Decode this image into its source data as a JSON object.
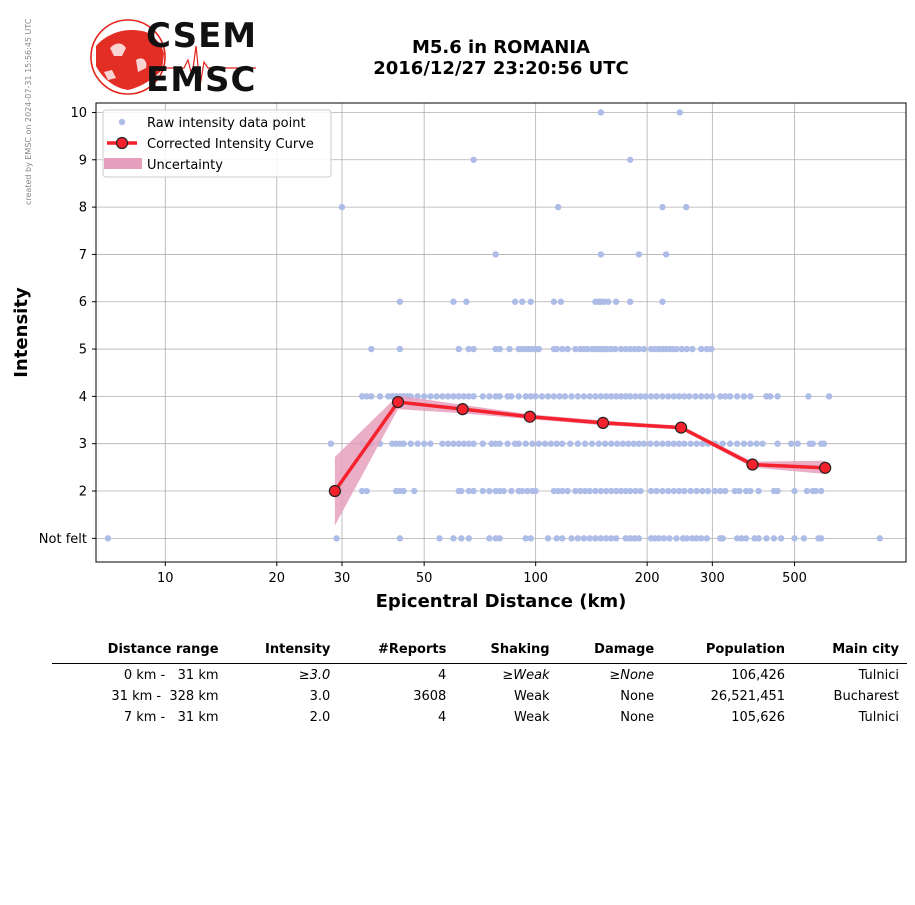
{
  "watermark": "created by EMSC on 2024-07-31 15:56:45 UTC",
  "logo": {
    "line1": "CSEM",
    "line2": "EMSC",
    "accent": "#e2231a"
  },
  "header": {
    "title_line1": "M5.6 in ROMANIA",
    "title_line2": "2016/12/27 23:20:56 UTC"
  },
  "chart_data": {
    "type": "scatter",
    "title": "M5.6 in ROMANIA 2016/12/27 23:20:56 UTC",
    "xlabel": "Epicentral Distance (km)",
    "ylabel": "Intensity",
    "xscale": "log",
    "xlim": [
      6.5,
      1000
    ],
    "ylim": [
      0.5,
      10.2
    ],
    "xticks": [
      10,
      20,
      30,
      50,
      100,
      200,
      300,
      500
    ],
    "yticks": [
      1,
      2,
      3,
      4,
      5,
      6,
      7,
      8,
      9,
      10
    ],
    "ytick_labels": [
      "Not felt",
      "2",
      "3",
      "4",
      "5",
      "6",
      "7",
      "8",
      "9",
      "10"
    ],
    "grid": true,
    "legend_position": "top-left",
    "legend": [
      "Raw intensity data point",
      "Corrected Intensity Curve",
      "Uncertainty"
    ],
    "colors": {
      "raw": "#aebde8",
      "curve": "#f5222d",
      "uncertainty": "#e6a0bd",
      "marker_edge": "#222222"
    },
    "raw_points": [
      {
        "y": 10,
        "x": [
          150,
          245
        ]
      },
      {
        "y": 9,
        "x": [
          68,
          180
        ]
      },
      {
        "y": 8,
        "x": [
          30,
          115,
          220,
          255
        ]
      },
      {
        "y": 7,
        "x": [
          78,
          150,
          190,
          225
        ]
      },
      {
        "y": 6,
        "x": [
          43,
          60,
          65,
          88,
          92,
          97,
          112,
          117,
          145,
          148,
          150,
          153,
          157,
          165,
          180,
          220
        ]
      },
      {
        "y": 5,
        "x": [
          36,
          43,
          62,
          66,
          68,
          78,
          80,
          85,
          90,
          92,
          94,
          96,
          98,
          100,
          102,
          112,
          114,
          118,
          122,
          128,
          132,
          135,
          138,
          142,
          145,
          148,
          150,
          153,
          156,
          160,
          164,
          170,
          175,
          180,
          185,
          190,
          196,
          205,
          210,
          215,
          220,
          225,
          230,
          235,
          240,
          248,
          256,
          265,
          280,
          290,
          298
        ]
      },
      {
        "y": 4,
        "x": [
          34,
          35,
          36,
          38,
          40,
          41,
          42,
          43,
          44,
          45,
          46,
          48,
          50,
          52,
          54,
          56,
          58,
          60,
          62,
          64,
          66,
          68,
          72,
          75,
          78,
          80,
          84,
          86,
          90,
          94,
          97,
          100,
          104,
          108,
          112,
          116,
          120,
          125,
          130,
          135,
          140,
          145,
          150,
          155,
          160,
          165,
          170,
          175,
          180,
          186,
          192,
          198,
          205,
          212,
          220,
          228,
          236,
          244,
          252,
          260,
          270,
          280,
          290,
          300,
          315,
          325,
          335,
          350,
          365,
          380,
          420,
          430,
          450,
          545,
          620
        ]
      },
      {
        "y": 3,
        "x": [
          28,
          34,
          36,
          38,
          41,
          42,
          43,
          44,
          46,
          48,
          50,
          52,
          56,
          58,
          60,
          62,
          64,
          66,
          68,
          72,
          76,
          78,
          80,
          84,
          88,
          90,
          94,
          98,
          102,
          106,
          110,
          114,
          118,
          124,
          130,
          136,
          142,
          148,
          154,
          160,
          166,
          172,
          178,
          184,
          190,
          196,
          204,
          212,
          220,
          228,
          236,
          244,
          252,
          262,
          272,
          282,
          292,
          305,
          320,
          335,
          350,
          365,
          380,
          395,
          410,
          450,
          490,
          510,
          550,
          560,
          590,
          600
        ]
      },
      {
        "y": 2,
        "x": [
          34,
          35,
          42,
          43,
          44,
          47,
          62,
          63,
          66,
          68,
          72,
          75,
          78,
          80,
          82,
          86,
          90,
          92,
          95,
          98,
          100,
          112,
          115,
          118,
          122,
          128,
          132,
          136,
          140,
          145,
          150,
          155,
          160,
          165,
          170,
          175,
          180,
          186,
          192,
          205,
          212,
          220,
          228,
          236,
          244,
          252,
          262,
          272,
          282,
          292,
          305,
          315,
          325,
          345,
          355,
          370,
          380,
          400,
          440,
          450,
          500,
          540,
          560,
          570,
          590
        ]
      },
      {
        "y": 1,
        "x": [
          7,
          29,
          43,
          55,
          60,
          63,
          66,
          75,
          78,
          80,
          94,
          97,
          108,
          114,
          118,
          125,
          130,
          135,
          140,
          145,
          150,
          155,
          160,
          165,
          175,
          180,
          185,
          190,
          205,
          210,
          215,
          222,
          230,
          240,
          250,
          256,
          265,
          272,
          280,
          290,
          315,
          320,
          350,
          360,
          370,
          390,
          400,
          420,
          440,
          460,
          500,
          530,
          580,
          590,
          850
        ]
      }
    ],
    "curve": [
      {
        "x": 28.7,
        "y": 2.0
      },
      {
        "x": 42.5,
        "y": 3.88
      },
      {
        "x": 63.5,
        "y": 3.73
      },
      {
        "x": 96.5,
        "y": 3.57
      },
      {
        "x": 152,
        "y": 3.44
      },
      {
        "x": 247,
        "y": 3.34
      },
      {
        "x": 385,
        "y": 2.56
      },
      {
        "x": 605,
        "y": 2.49
      }
    ],
    "uncertainty": {
      "x": [
        28.7,
        42.5,
        63.5,
        96.5,
        152,
        247,
        385,
        605
      ],
      "upper": [
        2.72,
        4.02,
        3.82,
        3.62,
        3.49,
        3.38,
        2.62,
        2.64
      ],
      "lower": [
        1.27,
        3.73,
        3.64,
        3.52,
        3.39,
        3.3,
        2.5,
        2.36
      ]
    }
  },
  "table": {
    "headers": [
      "Distance range",
      "Intensity",
      "#Reports",
      "Shaking",
      "Damage",
      "Population",
      "Main city"
    ],
    "rows": [
      {
        "range": "0 km -   31 km",
        "intensity": "≥3.0",
        "reports": "4",
        "shaking": "≥Weak",
        "damage": "≥None",
        "population": "106,426",
        "city": "Tulnici"
      },
      {
        "range": "31 km -  328 km",
        "intensity": "3.0",
        "reports": "3608",
        "shaking": "Weak",
        "damage": "None",
        "population": "26,521,451",
        "city": "Bucharest"
      },
      {
        "range": "7 km -   31 km",
        "intensity": "2.0",
        "reports": "4",
        "shaking": "Weak",
        "damage": "None",
        "population": "105,626",
        "city": "Tulnici"
      }
    ]
  }
}
